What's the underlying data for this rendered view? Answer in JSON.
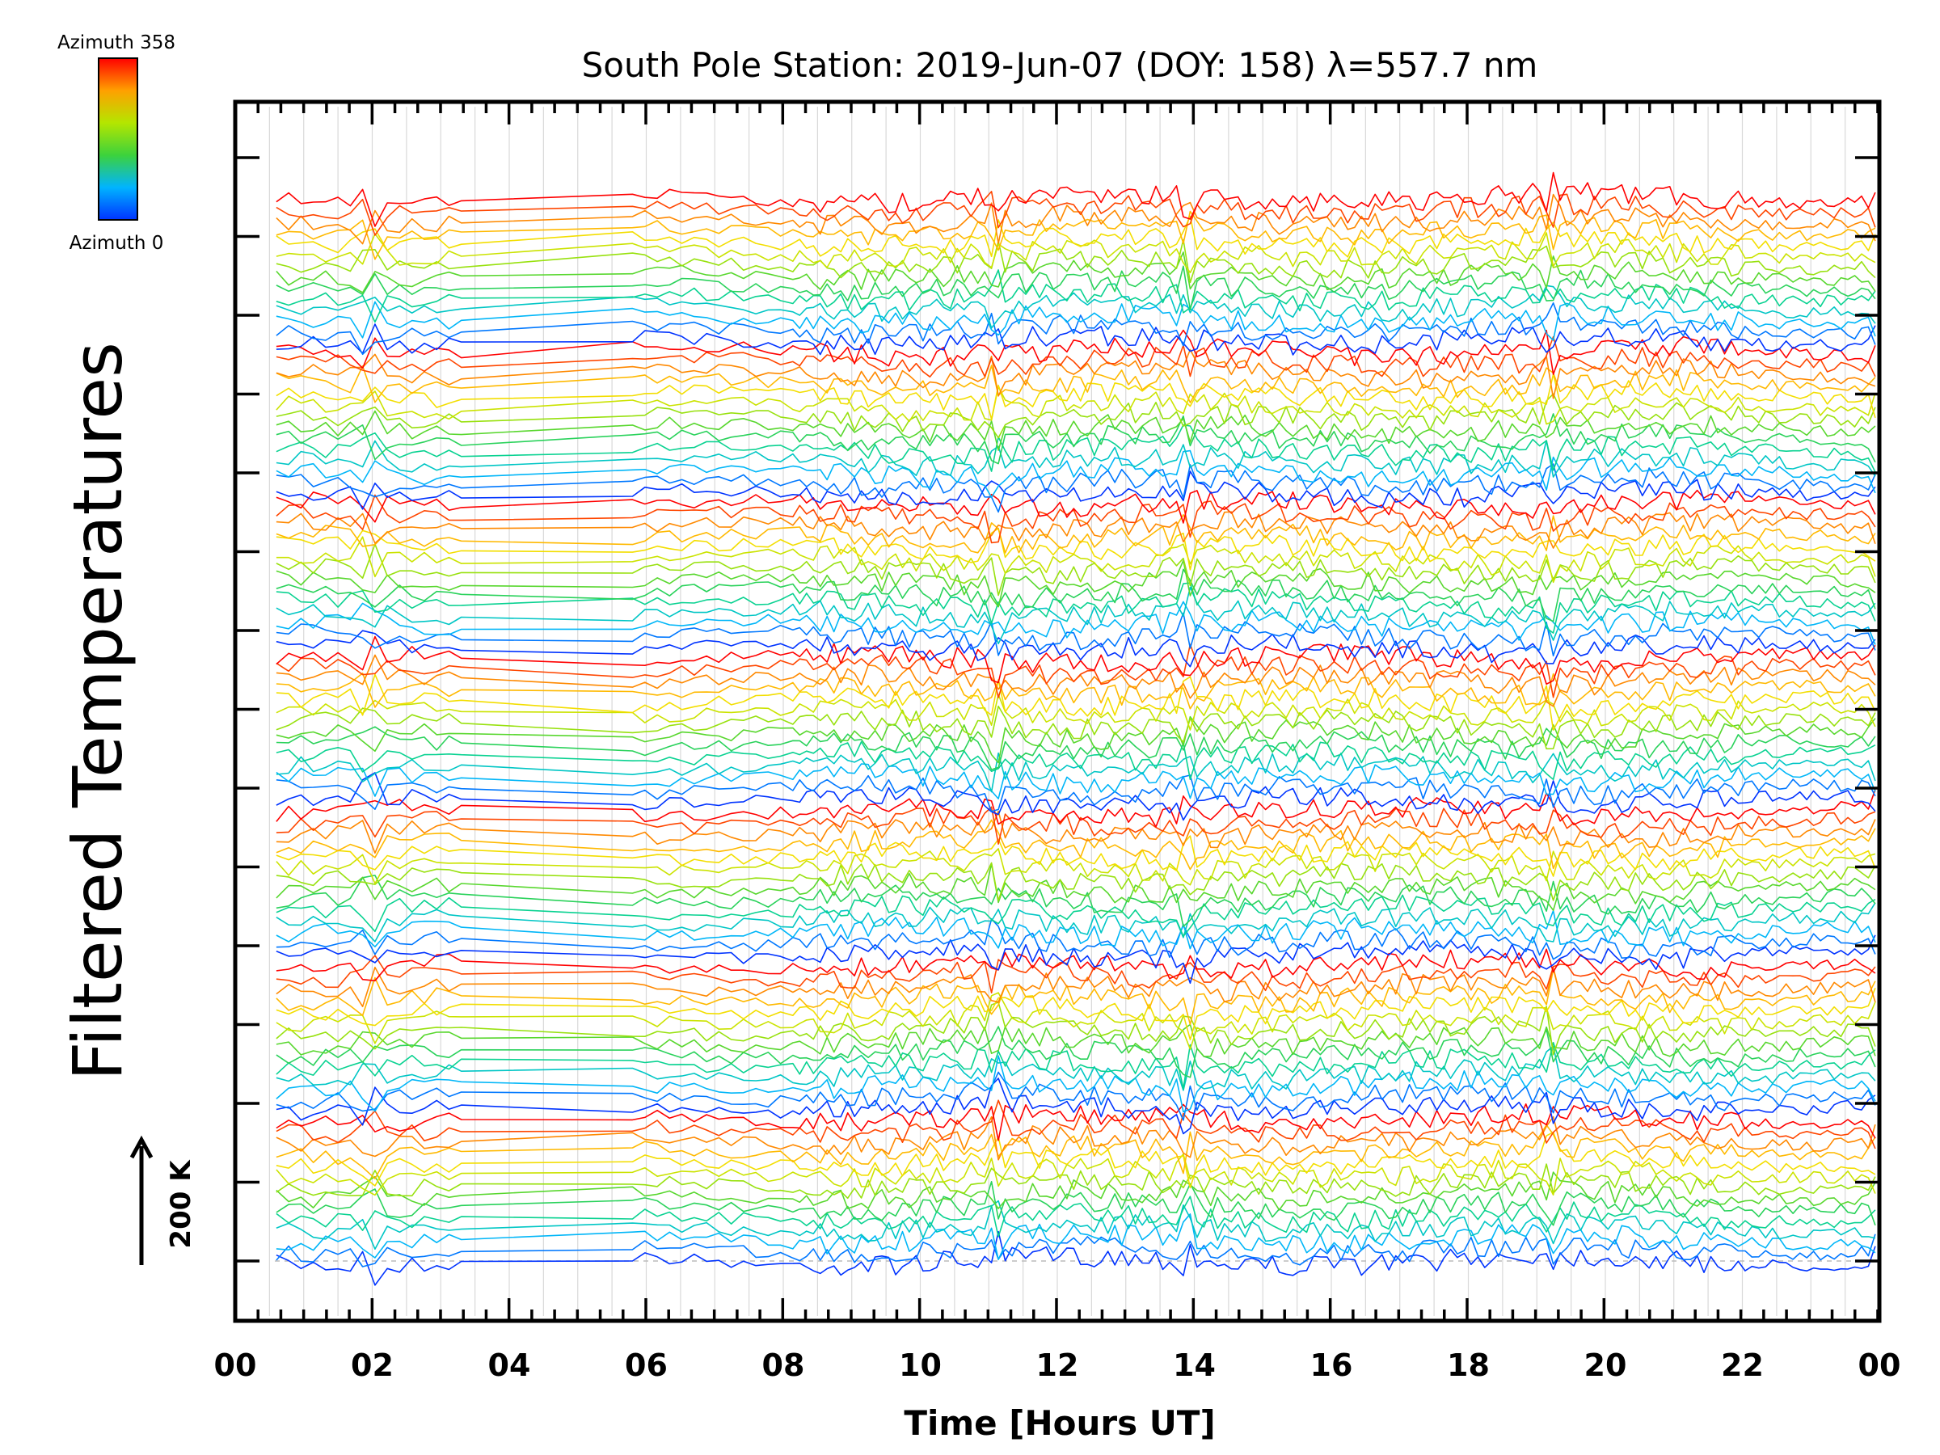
{
  "chart_data": {
    "type": "line",
    "title": "South Pole Station: 2019-Jun-07 (DOY: 158) λ=557.7 nm",
    "xlabel": "Time [Hours UT]",
    "ylabel": "Filtered Temperatures",
    "xlim": [
      0,
      24
    ],
    "x_tick_labels": [
      "00",
      "02",
      "04",
      "06",
      "08",
      "10",
      "12",
      "14",
      "16",
      "18",
      "20",
      "22",
      "00"
    ],
    "x_minor_step_hours": 0.333,
    "y_ticks_count": 15,
    "grid": "vertical dotted at every 0.5 h",
    "scale_bar": {
      "label": "200 K",
      "direction": "up"
    },
    "colorbar": {
      "colormap": "rainbow (blue → cyan → green → yellow → red)",
      "top_label": "Azimuth  358",
      "bottom_label": "Azimuth  0",
      "colors": [
        "#0033ff",
        "#00b4ff",
        "#00d2a0",
        "#3cd23c",
        "#b4e600",
        "#ffdc00",
        "#ff8200",
        "#ff0000"
      ]
    },
    "stacked_groups": 7,
    "traces_per_group": 14,
    "data_start_hour": 0.6,
    "data_end_hour": 24.0,
    "data_gap_hours": [
      3.3,
      5.8
    ],
    "common_spikes_hours": [
      1.8,
      2.0,
      11.1,
      13.9,
      19.2,
      24.0
    ]
  }
}
